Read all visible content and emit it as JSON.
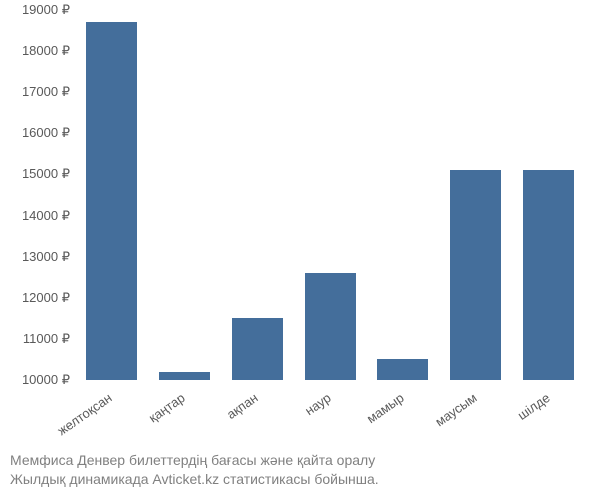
{
  "chart": {
    "type": "bar",
    "categories": [
      "желтоқсан",
      "қаңтар",
      "ақпан",
      "наур",
      "мамыр",
      "маусым",
      "шілде"
    ],
    "values": [
      18700,
      10200,
      11500,
      12600,
      10500,
      15100,
      15100
    ],
    "bar_color": "#446e9b",
    "background_color": "#ffffff",
    "ylim": [
      10000,
      19000
    ],
    "ytick_step": 1000,
    "currency_symbol": "₽",
    "bar_width_ratio": 0.7,
    "label_fontsize": 13,
    "label_color": "#595959",
    "x_label_rotation": -35
  },
  "caption": {
    "line1": "Мемфиса Денвер билеттердің бағасы және қайта оралу",
    "line2": "Жылдық динамикада Avticket.kz статистикасы бойынша.",
    "color": "#808080",
    "fontsize": 14
  }
}
